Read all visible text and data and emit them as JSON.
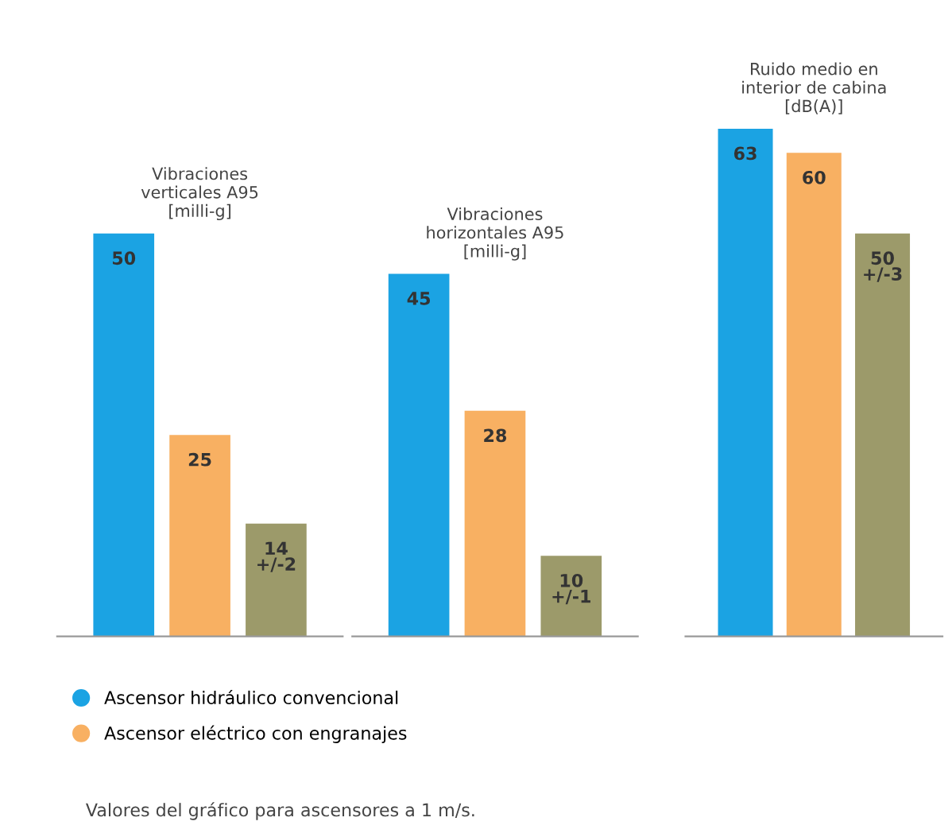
{
  "chart_data": [
    {
      "type": "bar",
      "title": "Vibraciones\nverticales A95\n[milli-g]",
      "categories": [
        null
      ],
      "legend": "bottom",
      "annotations": [
        "Valores del gráfico para ascensores a 1 m/s."
      ],
      "series": [
        {
          "name": "Ascensor hidráulico convencional",
          "color": "#1ba3e3",
          "values": [
            50
          ],
          "value_labels": [
            "50"
          ]
        },
        {
          "name": "Ascensor eléctrico con engranajes",
          "color": "#f8b062",
          "values": [
            25
          ],
          "value_labels": [
            "25"
          ]
        },
        {
          "color": "#9c9a6a",
          "values": [
            14
          ],
          "value_labels": [
            "14\n+/-2"
          ]
        }
      ]
    },
    {
      "type": "bar",
      "title": "Vibraciones\nhorizontales A95\n[milli-g]",
      "categories": [
        null
      ],
      "series": [
        {
          "color": "#1ba3e3",
          "values": [
            45
          ],
          "value_labels": [
            "45"
          ]
        },
        {
          "color": "#f8b062",
          "values": [
            28
          ],
          "value_labels": [
            "28"
          ]
        },
        {
          "color": "#9c9a6a",
          "values": [
            10
          ],
          "value_labels": [
            "10\n+/-1"
          ]
        }
      ]
    },
    {
      "type": "bar",
      "title": "Ruido medio en\ninterior de cabina\n[dB(A)]",
      "categories": [
        null
      ],
      "series": [
        {
          "color": "#1ba3e3",
          "values": [
            63
          ],
          "value_labels": [
            "63"
          ]
        },
        {
          "color": "#f8b062",
          "values": [
            60
          ],
          "value_labels": [
            "60"
          ]
        },
        {
          "color": "#9c9a6a",
          "values": [
            50
          ],
          "value_labels": [
            "50\n+/-3"
          ]
        }
      ]
    }
  ]
}
